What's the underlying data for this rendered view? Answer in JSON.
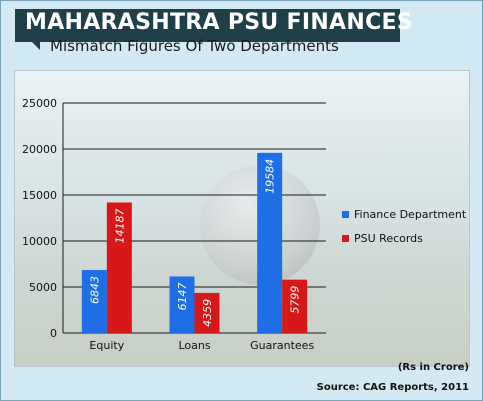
{
  "header": {
    "title": "MAHARASHTRA PSU FINANCES",
    "subtitle": "Mismatch Figures Of Two Departments"
  },
  "footer": {
    "units": "(Rs in Crore)",
    "source": "Source: CAG Reports, 2011"
  },
  "chart_data": {
    "type": "bar",
    "title": "",
    "xlabel": "",
    "ylabel": "",
    "categories": [
      "Equity",
      "Loans",
      "Guarantees"
    ],
    "series": [
      {
        "name": "Finance Department",
        "values": [
          6843,
          6147,
          19584
        ],
        "color": "#1e6fe6"
      },
      {
        "name": "PSU Records",
        "values": [
          14187,
          4359,
          5799
        ],
        "color": "#d61818"
      }
    ],
    "ylim": [
      0,
      25000
    ],
    "yticks": [
      0,
      5000,
      10000,
      15000,
      20000,
      25000
    ],
    "grid": true,
    "legend": "right",
    "data_labels": "inside-vertical"
  }
}
